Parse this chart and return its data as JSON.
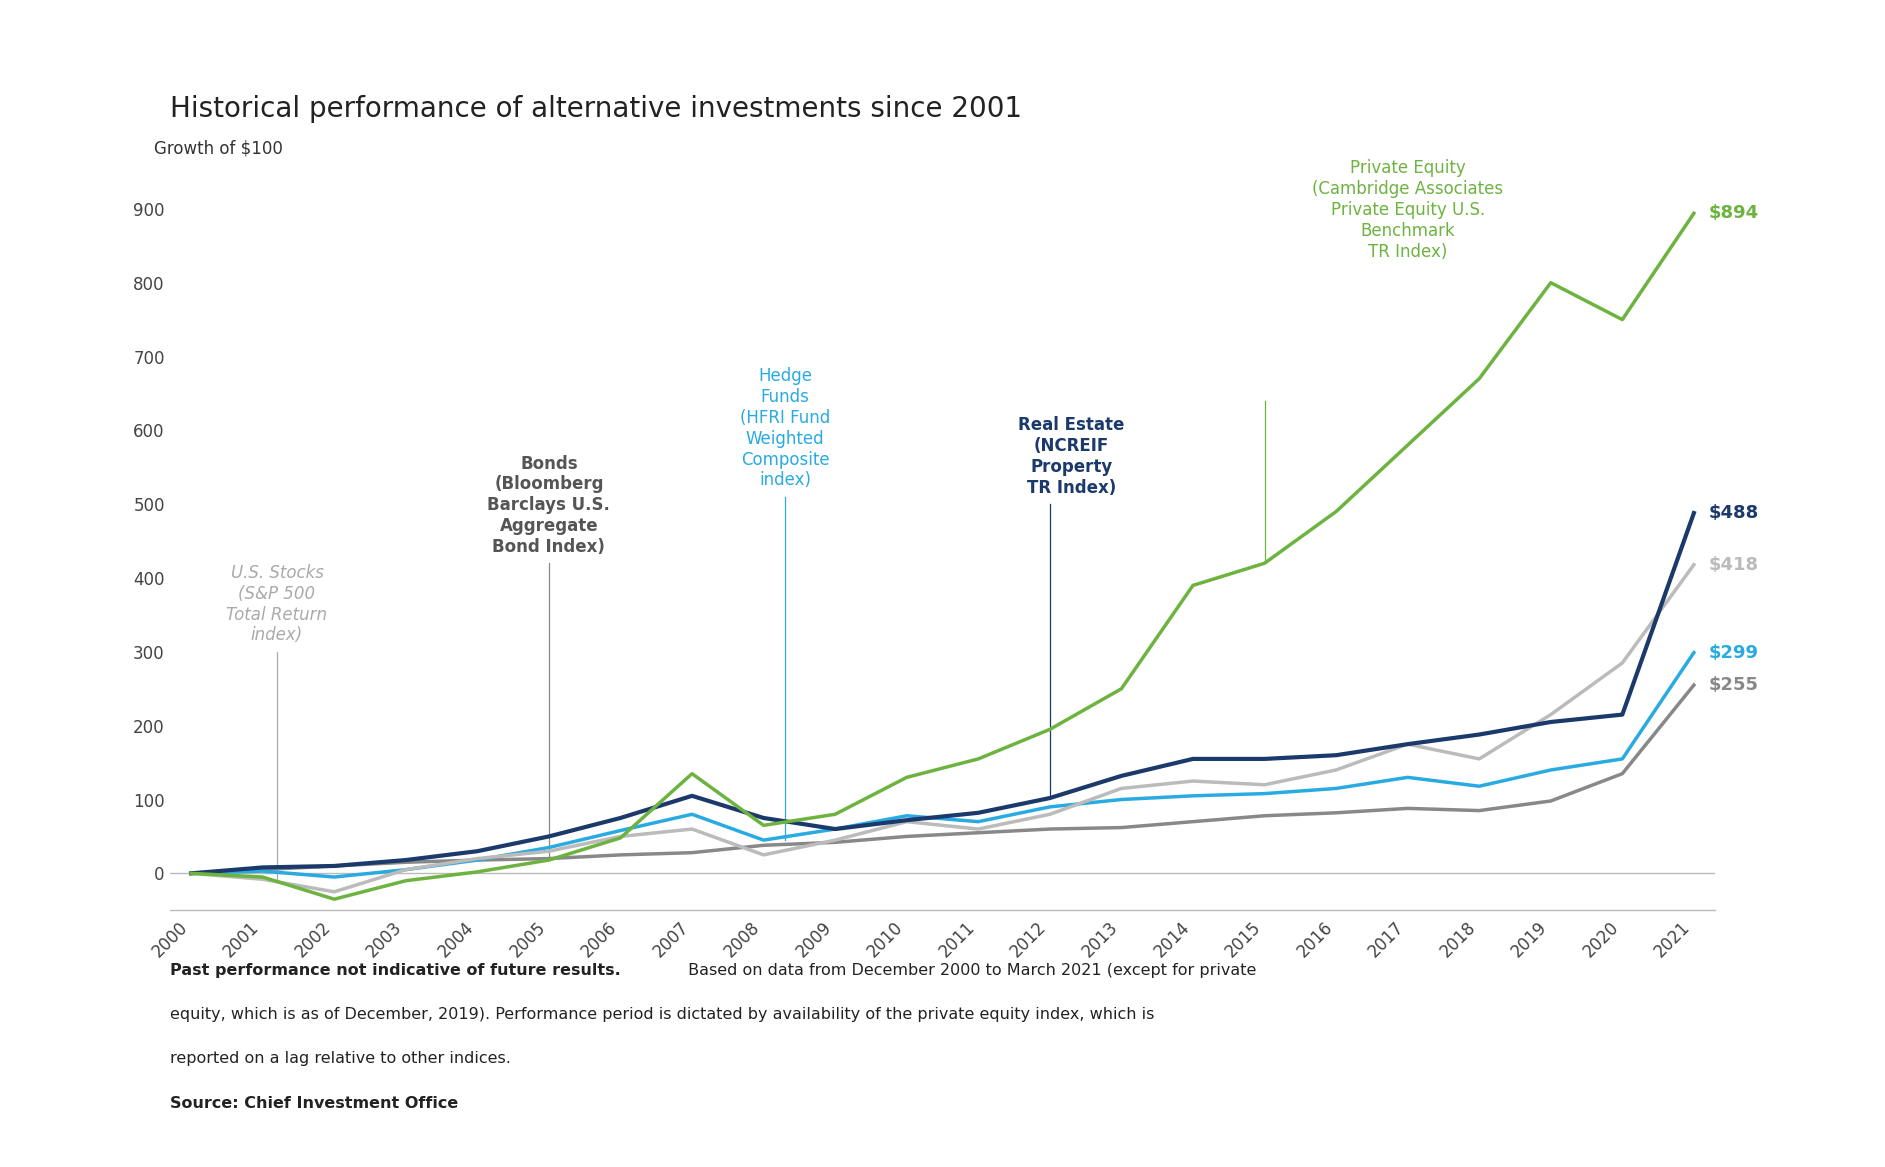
{
  "title": "Historical performance of alternative investments since 2001",
  "ylabel": "Growth of $100",
  "background_color": "#ffffff",
  "title_fontsize": 20,
  "years": [
    2000,
    2001,
    2002,
    2003,
    2004,
    2005,
    2006,
    2007,
    2008,
    2009,
    2010,
    2011,
    2012,
    2013,
    2014,
    2015,
    2016,
    2017,
    2018,
    2019,
    2020,
    2021
  ],
  "us_stocks": [
    0,
    -8,
    -25,
    5,
    20,
    30,
    50,
    60,
    25,
    45,
    70,
    60,
    80,
    115,
    125,
    120,
    140,
    175,
    155,
    215,
    285,
    418
  ],
  "bonds": [
    0,
    5,
    10,
    15,
    18,
    20,
    25,
    28,
    38,
    42,
    50,
    55,
    60,
    62,
    70,
    78,
    82,
    88,
    85,
    98,
    135,
    255
  ],
  "hedge_funds": [
    0,
    3,
    -5,
    5,
    18,
    35,
    58,
    80,
    45,
    60,
    78,
    70,
    90,
    100,
    105,
    108,
    115,
    130,
    118,
    140,
    155,
    299
  ],
  "real_estate": [
    0,
    8,
    10,
    18,
    30,
    50,
    75,
    105,
    75,
    60,
    72,
    82,
    102,
    132,
    155,
    155,
    160,
    175,
    188,
    205,
    215,
    488
  ],
  "private_equity": [
    0,
    -5,
    -35,
    -10,
    2,
    18,
    48,
    135,
    65,
    80,
    130,
    155,
    195,
    250,
    390,
    420,
    490,
    580,
    670,
    800,
    750,
    894
  ],
  "us_stocks_color": "#bbbbbb",
  "bonds_color": "#888888",
  "hedge_funds_color": "#29abe2",
  "real_estate_color": "#1b3a6b",
  "private_equity_color": "#6db33f",
  "ylim": [
    -50,
    930
  ],
  "yticks": [
    0,
    100,
    200,
    300,
    400,
    500,
    600,
    700,
    800,
    900
  ],
  "footnote_bold": "Past performance not indicative of future results.",
  "footnote_regular": " Based on data from December 2000 to March 2021 (except for private equity, which is as of December, 2019). Performance period is dictated by availability of the private equity index, which is reported on a lag relative to other indices.",
  "source": "Source: Chief Investment Office"
}
